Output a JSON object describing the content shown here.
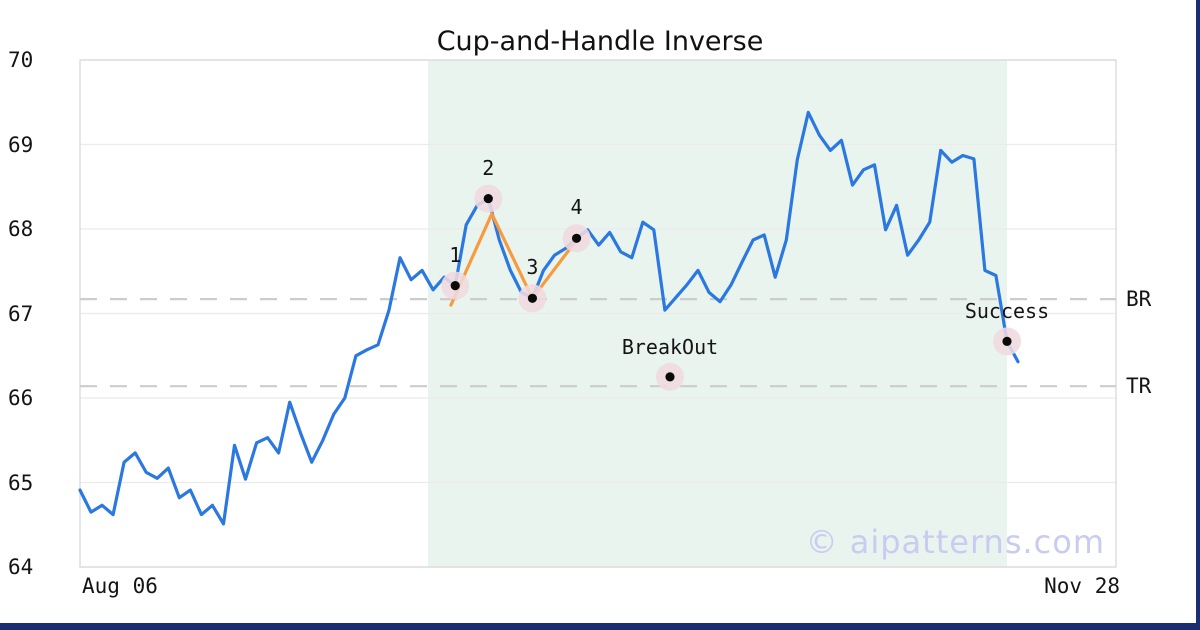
{
  "chart_data": {
    "type": "line",
    "title": "Cup-and-Handle Inverse",
    "ylim": [
      64,
      70
    ],
    "y_ticks": [
      70,
      69,
      68,
      67,
      66,
      65,
      64
    ],
    "x_axis": {
      "start_label": "Aug 06",
      "end_label": "Nov 28"
    },
    "grid": "horizontal",
    "legend": "none",
    "series": [
      {
        "name": "price",
        "x_span": [
          0,
          0.9054
        ],
        "values": [
          64.91,
          64.65,
          64.73,
          64.62,
          65.24,
          65.35,
          65.12,
          65.05,
          65.17,
          64.82,
          64.91,
          64.62,
          64.73,
          64.51,
          65.44,
          65.04,
          65.47,
          65.53,
          65.35,
          65.95,
          65.58,
          65.24,
          65.5,
          65.81,
          66.0,
          66.5,
          66.57,
          66.63,
          67.04,
          67.66,
          67.4,
          67.51,
          67.28,
          67.43,
          67.33,
          68.05,
          68.28,
          68.36,
          67.87,
          67.51,
          67.25,
          67.18,
          67.51,
          67.69,
          67.77,
          67.89,
          67.99,
          67.81,
          67.96,
          67.73,
          67.66,
          68.08,
          67.99,
          67.04,
          67.19,
          67.34,
          67.51,
          67.25,
          67.14,
          67.34,
          67.61,
          67.87,
          67.93,
          67.43,
          67.87,
          68.82,
          69.38,
          69.11,
          68.93,
          69.05,
          68.52,
          68.7,
          68.76,
          67.99,
          68.28,
          67.69,
          67.87,
          68.08,
          68.93,
          68.79,
          68.87,
          68.83,
          67.51,
          67.45,
          66.67,
          66.43
        ]
      }
    ],
    "pattern_overlay": {
      "name": "cup-and-handle-inverse",
      "points": [
        {
          "label": "1",
          "x": 0.3622,
          "value": 67.33
        },
        {
          "label": "2",
          "x": 0.3941,
          "value": 68.36
        },
        {
          "label": "3",
          "x": 0.4367,
          "value": 67.18
        },
        {
          "label": "4",
          "x": 0.4793,
          "value": 67.89
        }
      ],
      "line": [
        [
          0.358,
          67.1
        ],
        [
          0.3975,
          68.18
        ],
        [
          0.4367,
          67.18
        ],
        [
          0.4793,
          67.87
        ]
      ],
      "shaded_region": [
        0.3359,
        0.8948
      ]
    },
    "events": [
      {
        "label": "BreakOut",
        "x": 0.5695,
        "value": 66.25
      },
      {
        "label": "Success",
        "x": 0.8948,
        "value": 66.67
      }
    ],
    "levels": [
      {
        "label": "BR",
        "value": 67.17
      },
      {
        "label": "TR",
        "value": 66.14
      }
    ]
  },
  "watermark": "© aipatterns.com",
  "colors": {
    "price_line": "#2a78e0",
    "pattern_line": "#f89a3e",
    "marker_halo": "#efd9df",
    "marker_dot": "#0a0a0a",
    "shaded_region": "#eaf4ef",
    "level_dashed_line": "#cccccc",
    "grid_line": "#ebebeb",
    "frame": "#d9d9d9",
    "watermark_text": "#c9cbf0",
    "edge_bar": "#1b2d73"
  }
}
